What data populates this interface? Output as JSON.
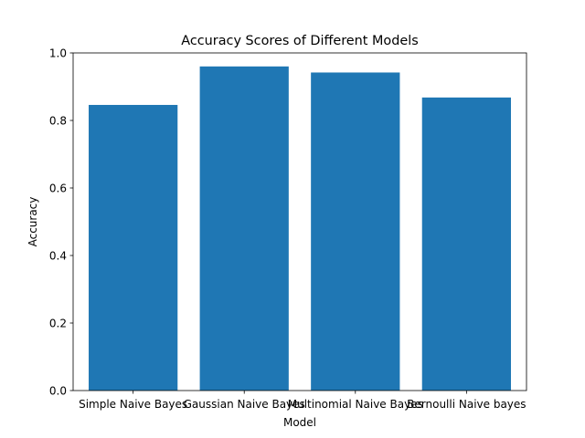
{
  "chart_data": {
    "type": "bar",
    "title": "Accuracy Scores of Different Models",
    "xlabel": "Model",
    "ylabel": "Accuracy",
    "categories": [
      "Simple Naive Bayes",
      "Gaussian Naive Bayes",
      "Multinomial Naive Bayes",
      "Bernoulli Naive bayes"
    ],
    "values": [
      0.846,
      0.96,
      0.942,
      0.868
    ],
    "ylim": [
      0,
      1.0
    ],
    "yticks": [
      "0.0",
      "0.2",
      "0.4",
      "0.6",
      "0.8",
      "1.0"
    ],
    "bar_color": "#1f77b4",
    "grid": false,
    "legend": "none"
  }
}
